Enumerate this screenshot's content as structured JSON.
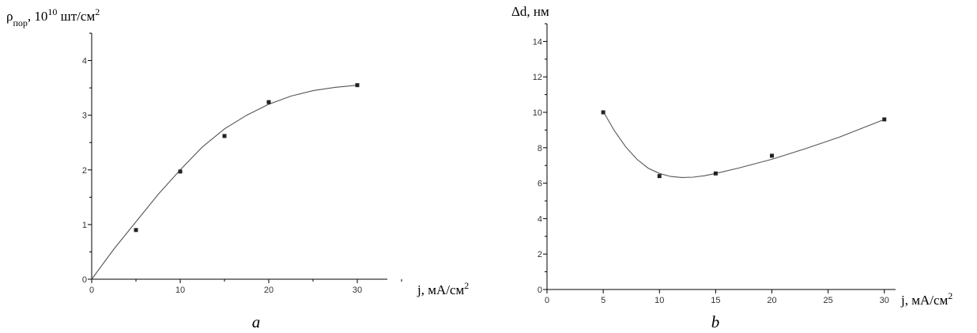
{
  "chart_data": [
    {
      "type": "scatter",
      "panel_label": "a",
      "ylabel": "ρ",
      "ylabel_sub": "пор",
      "ylabel_rest": ", 10",
      "ylabel_sup": "10",
      "ylabel_unit": " шт/см",
      "ylabel_unit_sup": "2",
      "xlabel": "j, мА/см",
      "xlabel_sup": "2",
      "xlim": [
        0,
        35
      ],
      "ylim": [
        0,
        4.5
      ],
      "xticks": [
        0,
        10,
        20,
        30
      ],
      "yticks": [
        0,
        1,
        2,
        3,
        4
      ],
      "x_minor_step": 5,
      "y_minor_step": 0.5,
      "grid": false,
      "series": [
        {
          "x": [
            5,
            10,
            15,
            20,
            30
          ],
          "y": [
            0.9,
            1.97,
            2.62,
            3.24,
            3.55
          ]
        }
      ],
      "fit_curve": {
        "x": [
          0,
          2.5,
          5,
          7.5,
          10,
          12.5,
          15,
          17.5,
          20,
          22.5,
          25,
          27.5,
          30
        ],
        "y": [
          0,
          0.55,
          1.05,
          1.55,
          2.0,
          2.42,
          2.75,
          3.0,
          3.2,
          3.35,
          3.45,
          3.51,
          3.55
        ]
      }
    },
    {
      "type": "scatter",
      "panel_label": "b",
      "ylabel": "Δd, нм",
      "xlabel": "j, мА/см",
      "xlabel_sup": "2",
      "xlim": [
        0,
        31
      ],
      "ylim": [
        0,
        15
      ],
      "xticks": [
        0,
        5,
        10,
        15,
        20,
        25,
        30
      ],
      "yticks": [
        0,
        2,
        4,
        6,
        8,
        10,
        12,
        14
      ],
      "y_minor_step": 1,
      "grid": false,
      "series": [
        {
          "x": [
            5,
            10,
            15,
            20,
            30
          ],
          "y": [
            10.0,
            6.4,
            6.55,
            7.55,
            9.6
          ]
        }
      ],
      "fit_curve": {
        "x": [
          5,
          6,
          7,
          8,
          9,
          10,
          11,
          12,
          13,
          14,
          15,
          17,
          20,
          23,
          26,
          30
        ],
        "y": [
          10.05,
          8.95,
          8.05,
          7.35,
          6.85,
          6.55,
          6.38,
          6.32,
          6.34,
          6.42,
          6.55,
          6.85,
          7.35,
          7.95,
          8.6,
          9.6
        ]
      }
    }
  ]
}
